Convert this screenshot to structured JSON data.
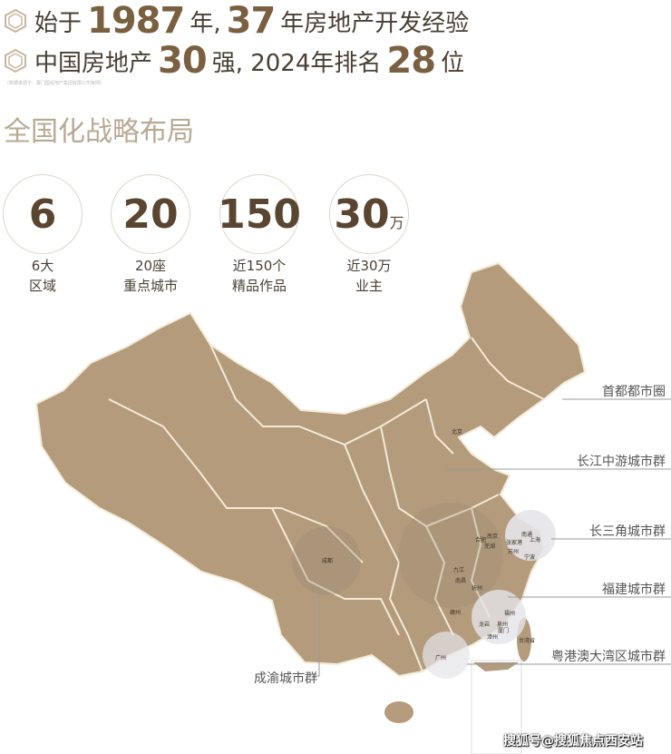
{
  "intro": {
    "line1": {
      "pre": "始于",
      "num1": "1987",
      "mid": "年,",
      "num2": "37",
      "post": "年房地产开发经验"
    },
    "line2": {
      "pre": "中国房地产",
      "num1": "30",
      "mid": "强, 2024年排名",
      "num2": "28",
      "post": "位"
    },
    "note": "(数据来源于：厦门国贸地产集团有限公司官网)"
  },
  "section_title": "全国化战略布局",
  "stats": [
    {
      "value": "6",
      "unit": "",
      "cap1": "6大",
      "cap2": "区域"
    },
    {
      "value": "20",
      "unit": "",
      "cap1": "20座",
      "cap2": "重点城市"
    },
    {
      "value": "150",
      "unit": "",
      "cap1": "近150个",
      "cap2": "精品作品"
    },
    {
      "value": "30",
      "unit": "万",
      "cap1": "近30万",
      "cap2": "业主"
    }
  ],
  "map": {
    "clusters": [
      "首都都市圈",
      "长江中游城市群",
      "长三角城市群",
      "福建城市群",
      "粤港澳大湾区城市群",
      "成渝城市群"
    ],
    "cities": [
      "北京",
      "成都",
      "合肥",
      "南京",
      "芜湖",
      "南通",
      "上海",
      "张家港",
      "苏州",
      "宁波",
      "九江",
      "南昌",
      "抚州",
      "赣州",
      "福州",
      "龙岩",
      "泉州",
      "厦门",
      "漳州",
      "广州",
      "台湾省"
    ],
    "fill_color": "#b39b7c"
  },
  "watermark": "搜狐号@搜狐焦点西安站",
  "colors": {
    "accent": "#7a6040",
    "text": "#4a3f33",
    "title": "#b8a993"
  }
}
